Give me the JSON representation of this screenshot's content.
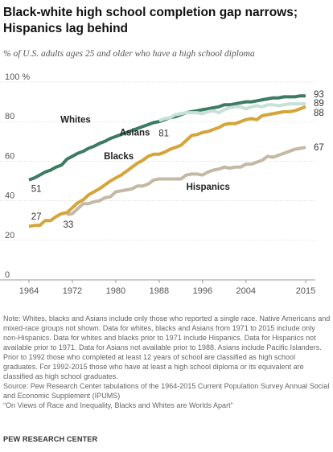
{
  "header": {
    "title": "Black-white high school completion gap narrows;\nHispanics lag behind",
    "subtitle": "% of U.S. adults ages 25 and older who have a high school diploma"
  },
  "chart_data": {
    "type": "line",
    "xlim": [
      1964,
      2015
    ],
    "ylim": [
      0,
      100
    ],
    "x_ticks": [
      "1964",
      "1972",
      "1980",
      "1988",
      "1996",
      "2004",
      "2015"
    ],
    "y_ticks": [
      "0",
      "20",
      "40",
      "60",
      "80",
      "100 %"
    ],
    "grid": true,
    "colors": {
      "Whites": "#3d7b63",
      "Asians": "#c7e0d8",
      "Blacks": "#d5a53a",
      "Hispanics": "#c3b9a5"
    },
    "series": [
      {
        "name": "Whites",
        "start_label": "51",
        "end_label": "93",
        "points": [
          [
            1964,
            50.5
          ],
          [
            1965,
            51.5
          ],
          [
            1966,
            53
          ],
          [
            1967,
            54.5
          ],
          [
            1968,
            55.5
          ],
          [
            1969,
            57
          ],
          [
            1970,
            58
          ],
          [
            1971,
            61
          ],
          [
            1972,
            62.5
          ],
          [
            1973,
            64
          ],
          [
            1974,
            65
          ],
          [
            1975,
            66.5
          ],
          [
            1976,
            67.5
          ],
          [
            1977,
            69
          ],
          [
            1978,
            70
          ],
          [
            1979,
            71.5
          ],
          [
            1980,
            72.5
          ],
          [
            1981,
            73.5
          ],
          [
            1982,
            74.5
          ],
          [
            1983,
            75.5
          ],
          [
            1984,
            76.5
          ],
          [
            1985,
            77.5
          ],
          [
            1986,
            78.5
          ],
          [
            1987,
            79.5
          ],
          [
            1988,
            80
          ],
          [
            1989,
            81
          ],
          [
            1990,
            82
          ],
          [
            1991,
            82.5
          ],
          [
            1992,
            83.5
          ],
          [
            1993,
            84.5
          ],
          [
            1994,
            85
          ],
          [
            1995,
            85.5
          ],
          [
            1996,
            86
          ],
          [
            1997,
            86.5
          ],
          [
            1998,
            87
          ],
          [
            1999,
            87.5
          ],
          [
            2000,
            88.5
          ],
          [
            2001,
            88.5
          ],
          [
            2002,
            89
          ],
          [
            2003,
            89.5
          ],
          [
            2004,
            90
          ],
          [
            2005,
            90
          ],
          [
            2006,
            90.5
          ],
          [
            2007,
            91
          ],
          [
            2008,
            91.5
          ],
          [
            2009,
            92
          ],
          [
            2010,
            92
          ],
          [
            2011,
            92.5
          ],
          [
            2012,
            92.5
          ],
          [
            2013,
            92.5
          ],
          [
            2014,
            93
          ],
          [
            2015,
            93
          ]
        ]
      },
      {
        "name": "Asians",
        "start_label": "81",
        "end_label": "89",
        "points": [
          [
            1988,
            80.5
          ],
          [
            1989,
            81.5
          ],
          [
            1990,
            82
          ],
          [
            1991,
            83.5
          ],
          [
            1992,
            84
          ],
          [
            1993,
            84.5
          ],
          [
            1994,
            84.5
          ],
          [
            1995,
            84.5
          ],
          [
            1996,
            84
          ],
          [
            1997,
            85
          ],
          [
            1998,
            85.5
          ],
          [
            1999,
            84.5
          ],
          [
            2000,
            86
          ],
          [
            2001,
            87
          ],
          [
            2002,
            87.5
          ],
          [
            2003,
            87.5
          ],
          [
            2004,
            86.5
          ],
          [
            2005,
            87.5
          ],
          [
            2006,
            88
          ],
          [
            2007,
            87.5
          ],
          [
            2008,
            88.5
          ],
          [
            2009,
            88.5
          ],
          [
            2010,
            88
          ],
          [
            2011,
            88.5
          ],
          [
            2012,
            89
          ],
          [
            2013,
            89
          ],
          [
            2014,
            89
          ],
          [
            2015,
            89
          ]
        ]
      },
      {
        "name": "Blacks",
        "start_label": "27",
        "end_label": "88",
        "points": [
          [
            1964,
            27
          ],
          [
            1965,
            27.5
          ],
          [
            1966,
            27.5
          ],
          [
            1967,
            30
          ],
          [
            1968,
            30
          ],
          [
            1969,
            32
          ],
          [
            1970,
            33.5
          ],
          [
            1971,
            34
          ],
          [
            1972,
            36.5
          ],
          [
            1973,
            39
          ],
          [
            1974,
            40.5
          ],
          [
            1975,
            43
          ],
          [
            1976,
            44.5
          ],
          [
            1977,
            46
          ],
          [
            1978,
            48
          ],
          [
            1979,
            50
          ],
          [
            1980,
            51.5
          ],
          [
            1981,
            53
          ],
          [
            1982,
            55
          ],
          [
            1983,
            57
          ],
          [
            1984,
            59
          ],
          [
            1985,
            60.5
          ],
          [
            1986,
            62.5
          ],
          [
            1987,
            63.5
          ],
          [
            1988,
            63.5
          ],
          [
            1989,
            64.5
          ],
          [
            1990,
            66
          ],
          [
            1991,
            67
          ],
          [
            1992,
            68
          ],
          [
            1993,
            70.5
          ],
          [
            1994,
            73
          ],
          [
            1995,
            73.5
          ],
          [
            1996,
            74.5
          ],
          [
            1997,
            75
          ],
          [
            1998,
            76
          ],
          [
            1999,
            77
          ],
          [
            2000,
            78.5
          ],
          [
            2001,
            79
          ],
          [
            2002,
            79
          ],
          [
            2003,
            80
          ],
          [
            2004,
            81
          ],
          [
            2005,
            81.5
          ],
          [
            2006,
            81
          ],
          [
            2007,
            83
          ],
          [
            2008,
            83.5
          ],
          [
            2009,
            84
          ],
          [
            2010,
            84.5
          ],
          [
            2011,
            85
          ],
          [
            2012,
            85
          ],
          [
            2013,
            85.5
          ],
          [
            2014,
            86.5
          ],
          [
            2015,
            87.5
          ]
        ]
      },
      {
        "name": "Hispanics",
        "start_label": "33",
        "end_label": "67",
        "points": [
          [
            1971,
            33
          ],
          [
            1972,
            33.5
          ],
          [
            1973,
            36
          ],
          [
            1974,
            38.5
          ],
          [
            1975,
            38.5
          ],
          [
            1976,
            39.5
          ],
          [
            1977,
            40
          ],
          [
            1978,
            41.5
          ],
          [
            1979,
            42
          ],
          [
            1980,
            44.5
          ],
          [
            1981,
            45
          ],
          [
            1982,
            45.5
          ],
          [
            1983,
            46
          ],
          [
            1984,
            47.5
          ],
          [
            1985,
            47.5
          ],
          [
            1986,
            48.5
          ],
          [
            1987,
            50.5
          ],
          [
            1988,
            51
          ],
          [
            1989,
            51
          ],
          [
            1990,
            51
          ],
          [
            1991,
            51
          ],
          [
            1992,
            51
          ],
          [
            1993,
            53
          ],
          [
            1994,
            53.5
          ],
          [
            1995,
            53.5
          ],
          [
            1996,
            53
          ],
          [
            1997,
            54.5
          ],
          [
            1998,
            55.5
          ],
          [
            1999,
            56
          ],
          [
            2000,
            57
          ],
          [
            2001,
            56.5
          ],
          [
            2002,
            57
          ],
          [
            2003,
            57
          ],
          [
            2004,
            58.5
          ],
          [
            2005,
            58.5
          ],
          [
            2006,
            59.5
          ],
          [
            2007,
            60.5
          ],
          [
            2008,
            62.5
          ],
          [
            2009,
            62
          ],
          [
            2010,
            63
          ],
          [
            2011,
            64
          ],
          [
            2012,
            65
          ],
          [
            2013,
            66
          ],
          [
            2014,
            66.5
          ],
          [
            2015,
            67
          ]
        ]
      }
    ]
  },
  "notes": {
    "note": "Note: Whites, blacks and Asians include only those who reported a single race. Native Americans and mixed-race groups not shown. Data for whites, blacks and Asians from 1971 to 2015 include only non-Hispanics. Data for whites and blacks prior to 1971 include Hispanics. Data for Hispanics not available prior to 1971. Data for Asians not available prior to 1988. Asians include Pacific Islanders. Prior to 1992 those who completed at least 12 years of school are classified as high school graduates. For 1992-2015 those who have at least a high school diploma or its equivalent are classified as high school graduates.",
    "source": "Source: Pew Research Center tabulations of the 1964-2015 Current Population Survey Annual Social and Economic Supplement (IPUMS)",
    "report": "“On Views of Race and Inequality, Blacks and Whites are Worlds Apart”"
  },
  "footer": {
    "organization": "PEW RESEARCH CENTER"
  }
}
